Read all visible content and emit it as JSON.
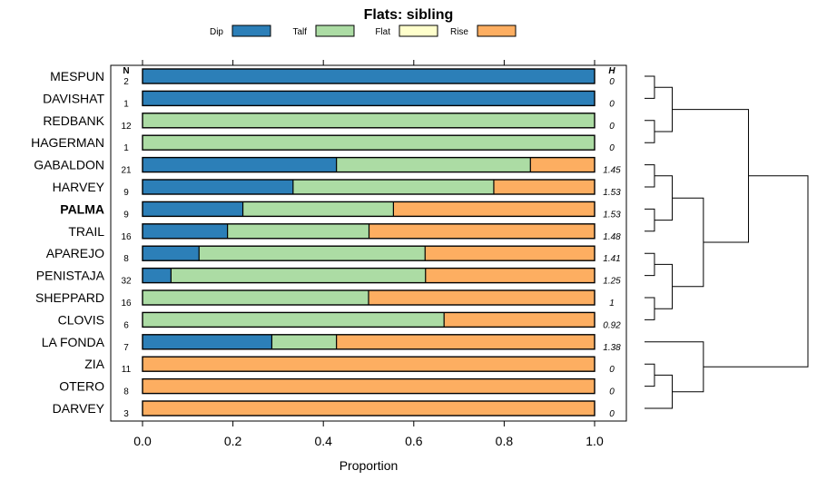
{
  "chart_data": {
    "type": "bar",
    "orientation": "horizontal",
    "stacked": true,
    "title": "Flats: sibling",
    "xlabel": "Proportion",
    "ylabel": "",
    "xlim": [
      0,
      1
    ],
    "xticks": [
      "0.0",
      "0.2",
      "0.4",
      "0.6",
      "0.8",
      "1.0"
    ],
    "legend_position": "top",
    "colors": {
      "Dip": "#2c7fb8",
      "Talf": "#acdca4",
      "Flat": "#ffffcc",
      "Rise": "#fdae61"
    },
    "n_header": "N",
    "h_header": "H",
    "highlight": "PALMA",
    "series": [
      {
        "name": "Dip",
        "values": [
          1,
          1,
          0,
          0,
          0.429,
          0.333,
          0.222,
          0.188,
          0.125,
          0.063,
          0,
          0,
          0.286,
          0,
          0,
          0
        ]
      },
      {
        "name": "Talf",
        "values": [
          0,
          0,
          1,
          1,
          0.429,
          0.444,
          0.333,
          0.313,
          0.5,
          0.563,
          0.5,
          0.667,
          0.143,
          0,
          0,
          0
        ]
      },
      {
        "name": "Flat",
        "values": [
          0,
          0,
          0,
          0,
          0,
          0,
          0,
          0,
          0,
          0,
          0,
          0,
          0,
          0,
          0,
          0
        ]
      },
      {
        "name": "Rise",
        "values": [
          0,
          0,
          0,
          0,
          0.143,
          0.222,
          0.444,
          0.5,
          0.375,
          0.375,
          0.5,
          0.333,
          0.571,
          1,
          1,
          1
        ]
      }
    ],
    "categories": [
      "MESPUN",
      "DAVISHAT",
      "REDBANK",
      "HAGERMAN",
      "GABALDON",
      "HARVEY",
      "PALMA",
      "TRAIL",
      "APAREJO",
      "PENISTAJA",
      "SHEPPARD",
      "CLOVIS",
      "LA FONDA",
      "ZIA",
      "OTERO",
      "DARVEY"
    ],
    "n": [
      "2",
      "1",
      "12",
      "1",
      "21",
      "9",
      "9",
      "16",
      "8",
      "32",
      "16",
      "6",
      "7",
      "11",
      "8",
      "3"
    ],
    "h": [
      "0",
      "0",
      "0",
      "0",
      "1.45",
      "1.53",
      "1.53",
      "1.48",
      "1.41",
      "1.25",
      "1",
      "0.92",
      "1.38",
      "0",
      "0",
      "0"
    ],
    "dendrogram_tree": [
      [
        [
          [
            0,
            1
          ],
          [
            2,
            3
          ]
        ],
        [
          [
            [
              4,
              5
            ],
            [
              6,
              7
            ]
          ],
          [
            [
              8,
              9
            ],
            [
              10,
              11
            ]
          ]
        ]
      ],
      [
        12,
        [
          [
            13,
            14
          ],
          15
        ]
      ]
    ]
  }
}
